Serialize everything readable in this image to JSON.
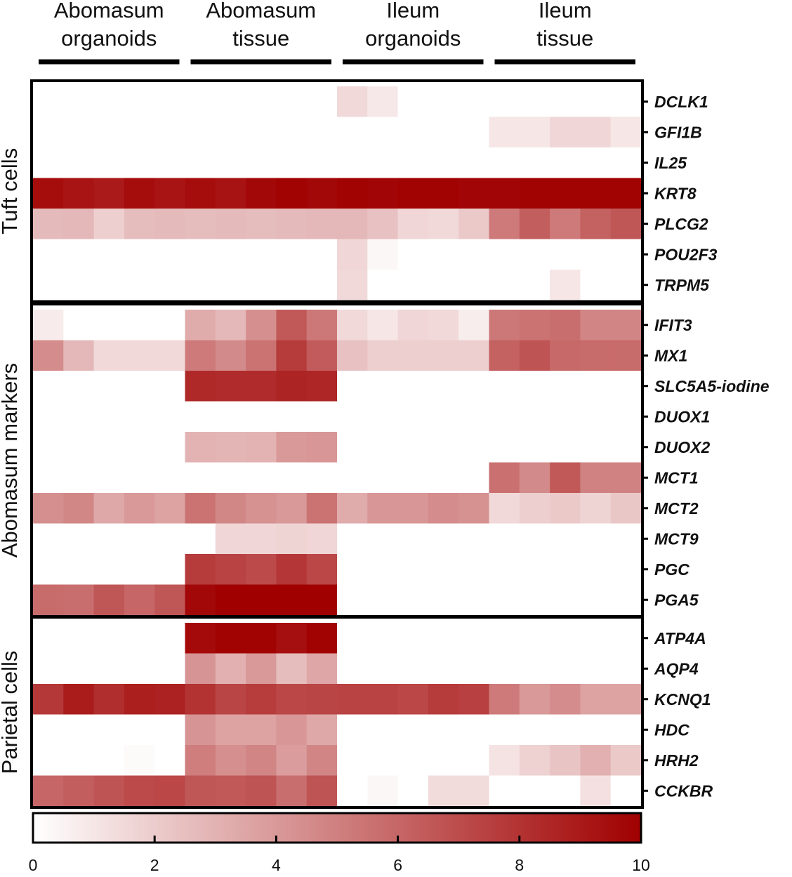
{
  "chart_data": {
    "type": "heatmap",
    "groups": [
      "Abomasum organoids",
      "Abomasum tissue",
      "Ileum organoids",
      "Ileum tissue"
    ],
    "group_lines": [
      [
        "Abomasum",
        "organoids"
      ],
      [
        "Abomasum",
        "tissue"
      ],
      [
        "Ileum",
        "organoids"
      ],
      [
        "Ileum",
        "tissue"
      ]
    ],
    "columns_per_group": 5,
    "colorscale": {
      "min": 0,
      "max": 10,
      "low_color": "#ffffff",
      "high_color": "#a00000",
      "ticks": [
        0,
        2,
        4,
        6,
        8,
        10
      ]
    },
    "panels": [
      {
        "label": "Tuft cells",
        "rows": [
          {
            "gene": "DCLK1",
            "values": [
              0,
              0,
              0,
              0,
              0,
              0,
              0,
              0,
              0,
              0,
              1.5,
              0.9,
              0,
              0,
              0,
              0,
              0,
              0,
              0,
              0
            ]
          },
          {
            "gene": "GFI1B",
            "values": [
              0,
              0,
              0,
              0,
              0,
              0,
              0,
              0,
              0,
              0,
              0,
              0,
              0,
              0,
              0,
              1,
              1,
              1.6,
              1.6,
              1
            ]
          },
          {
            "gene": "IL25",
            "values": [
              0,
              0,
              0,
              0,
              0,
              0,
              0,
              0,
              0,
              0,
              0,
              0,
              0,
              0,
              0,
              0,
              0,
              0,
              0,
              0
            ]
          },
          {
            "gene": "KRT8",
            "values": [
              9.5,
              9.2,
              9,
              9.5,
              9.2,
              9.5,
              9.3,
              9.7,
              9.9,
              9.7,
              9.9,
              9.8,
              9.9,
              9.9,
              9.8,
              9.8,
              9.9,
              9.9,
              9.9,
              9.9
            ]
          },
          {
            "gene": "PLCG2",
            "values": [
              2.7,
              2.8,
              1.9,
              2.6,
              2.7,
              2.6,
              2.7,
              2.6,
              2.7,
              2.8,
              2.8,
              2.4,
              1.6,
              1.5,
              2.1,
              5.2,
              6.3,
              5.2,
              6.2,
              6.6
            ]
          },
          {
            "gene": "POU2F3",
            "values": [
              0,
              0,
              0,
              0,
              0,
              0,
              0,
              0,
              0,
              0,
              1.6,
              0.3,
              0,
              0,
              0,
              0,
              0,
              0,
              0,
              0
            ]
          },
          {
            "gene": "TRPM5",
            "values": [
              0,
              0,
              0,
              0,
              0,
              0,
              0,
              0,
              0,
              0,
              1.5,
              0,
              0,
              0,
              0,
              0,
              0,
              1,
              0,
              0
            ]
          }
        ]
      },
      {
        "label": "Abomasum markers",
        "rows": [
          {
            "gene": "IFIT3",
            "values": [
              0.8,
              0,
              0,
              0,
              0,
              3.3,
              2.8,
              4.4,
              6.5,
              5.3,
              1.5,
              1,
              1.6,
              1.5,
              0.7,
              5.3,
              5.5,
              5.7,
              4.8,
              4.8
            ]
          },
          {
            "gene": "MX1",
            "values": [
              4.5,
              2.8,
              1.5,
              1.5,
              1.5,
              5.2,
              4.6,
              5.5,
              7.7,
              6.4,
              2.4,
              1.9,
              1.9,
              1.9,
              1.9,
              6.2,
              6.7,
              5.9,
              5.8,
              5.8
            ]
          },
          {
            "gene": "SLC5A5-iodine",
            "values": [
              0,
              0,
              0,
              0,
              0,
              8.4,
              8.3,
              8.3,
              8.6,
              8.5,
              0,
              0,
              0,
              0,
              0,
              0,
              0,
              0,
              0,
              0
            ]
          },
          {
            "gene": "DUOX1",
            "values": [
              0,
              0,
              0,
              0,
              0,
              0,
              0,
              0,
              0,
              0,
              0,
              0,
              0,
              0,
              0,
              0,
              0,
              0,
              0,
              0
            ]
          },
          {
            "gene": "DUOX2",
            "values": [
              0,
              0,
              0,
              0,
              0,
              3,
              2.9,
              3,
              4,
              4.1,
              0,
              0,
              0,
              0,
              0,
              0,
              0,
              0,
              0,
              0
            ]
          },
          {
            "gene": "MCT1",
            "values": [
              0,
              0,
              0,
              0,
              0,
              0,
              0,
              0,
              0,
              0,
              0,
              0,
              0,
              0,
              0,
              5.6,
              4.6,
              6.5,
              4.9,
              4.9
            ]
          },
          {
            "gene": "MCT2",
            "values": [
              4.4,
              4.7,
              3.4,
              4,
              3.6,
              5.5,
              4.7,
              4.3,
              4,
              5.5,
              3.3,
              4.1,
              4.1,
              4.5,
              4.3,
              1.5,
              1.9,
              2.1,
              1.7,
              2.2
            ]
          },
          {
            "gene": "MCT9",
            "values": [
              0,
              0,
              0,
              0,
              0,
              0,
              1.6,
              1.6,
              1.7,
              1.6,
              0,
              0,
              0,
              0,
              0,
              0,
              0,
              0,
              0,
              0
            ]
          },
          {
            "gene": "PGC",
            "values": [
              0,
              0,
              0,
              0,
              0,
              7.7,
              7.4,
              7.1,
              7.9,
              7.2,
              0,
              0,
              0,
              0,
              0,
              0,
              0,
              0,
              0,
              0
            ]
          },
          {
            "gene": "PGA5",
            "values": [
              5.8,
              5.7,
              6.6,
              6,
              6.6,
              9.7,
              10,
              10,
              10,
              10,
              0,
              0,
              0,
              0,
              0,
              0,
              0,
              0,
              0,
              0
            ]
          }
        ]
      },
      {
        "label": "Parietal cells",
        "rows": [
          {
            "gene": "ATP4A",
            "values": [
              0,
              0,
              0,
              0,
              0,
              9.6,
              9.9,
              9.9,
              9.4,
              9.9,
              0,
              0,
              0,
              0,
              0,
              0,
              0,
              0,
              0,
              0
            ]
          },
          {
            "gene": "AQP4",
            "values": [
              0,
              0,
              0,
              0,
              0,
              4.2,
              3.1,
              4,
              2.6,
              3.5,
              0,
              0,
              0,
              0,
              0,
              0,
              0,
              0,
              0,
              0
            ]
          },
          {
            "gene": "KCNQ1",
            "values": [
              7.8,
              8.9,
              8.2,
              8.8,
              8.7,
              8,
              7.3,
              7.6,
              7.2,
              7.3,
              7.4,
              7.4,
              7.2,
              7.7,
              7.5,
              5.2,
              4,
              4.5,
              3.6,
              3.6
            ]
          },
          {
            "gene": "HDC",
            "values": [
              0,
              0,
              0,
              0,
              0,
              4.2,
              3.6,
              3.6,
              4.1,
              3.4,
              0,
              0,
              0,
              0,
              0,
              0,
              0,
              0,
              0,
              0
            ]
          },
          {
            "gene": "HRH2",
            "values": [
              0,
              0,
              0,
              0.2,
              0,
              5.1,
              4.4,
              4.8,
              3.9,
              4.8,
              0,
              0,
              0,
              0,
              0,
              1.1,
              1.8,
              2.3,
              3.1,
              2.1
            ]
          },
          {
            "gene": "CCKBR",
            "values": [
              6,
              6.3,
              6.7,
              7.1,
              7.2,
              6.6,
              6.5,
              6.7,
              5.7,
              6.7,
              0,
              0.3,
              0,
              1.4,
              1.4,
              0,
              0,
              0,
              1.2,
              0
            ]
          }
        ]
      }
    ]
  }
}
